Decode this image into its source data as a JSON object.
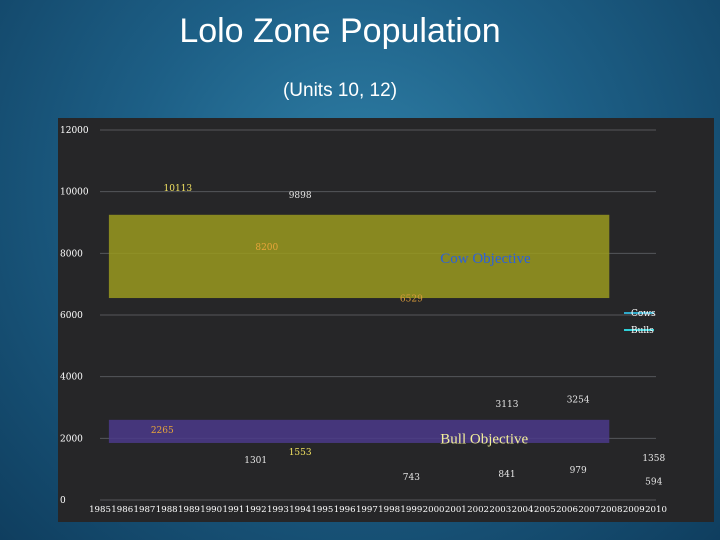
{
  "slide": {
    "title": "Lolo Zone Population",
    "subtitle": "(Units 10, 12)"
  },
  "chart_data": {
    "type": "line",
    "title": "Lolo Zone Population",
    "subtitle": "(Units 10, 12)",
    "xlabel": "",
    "ylabel": "",
    "ylim": [
      0,
      12000
    ],
    "yticks": [
      0,
      2000,
      4000,
      6000,
      8000,
      10000,
      12000
    ],
    "ytick_labels": [
      "0",
      "2000",
      "4000",
      "6000",
      "8000",
      "10000",
      "12000"
    ],
    "grid": true,
    "x": [
      1985,
      1986,
      1987,
      1988,
      1989,
      1990,
      1991,
      1992,
      1993,
      1994,
      1995,
      1996,
      1997,
      1998,
      1999,
      2000,
      2001,
      2002,
      2003,
      2004,
      2005,
      2006,
      2007,
      2008,
      2009,
      2010
    ],
    "series": [
      {
        "name": "Cows",
        "color": "#2fa8c8"
      },
      {
        "name": "Bulls",
        "color": "#2fd0d8"
      }
    ],
    "data_labels": [
      {
        "x": 1988.5,
        "y": 10113,
        "text": "10113",
        "color": "#f0e060"
      },
      {
        "x": 1994.0,
        "y": 9898,
        "text": "9898",
        "color": "#e6e6e6"
      },
      {
        "x": 1992.5,
        "y": 8200,
        "text": "8200",
        "color": "#e8a53a"
      },
      {
        "x": 1999.0,
        "y": 6529,
        "text": "6529",
        "color": "#d89a3a"
      },
      {
        "x": 1987.8,
        "y": 2265,
        "text": "2265",
        "color": "#e8a53a"
      },
      {
        "x": 1992.0,
        "y": 1301,
        "text": "1301",
        "color": "#e6e6e6"
      },
      {
        "x": 1994.0,
        "y": 1553,
        "text": "1553",
        "color": "#f0e060"
      },
      {
        "x": 1999.0,
        "y": 743,
        "text": "743",
        "color": "#e6e6e6"
      },
      {
        "x": 2003.3,
        "y": 3113,
        "text": "3113",
        "color": "#e6e6e6"
      },
      {
        "x": 2003.3,
        "y": 841,
        "text": "841",
        "color": "#e6e6e6"
      },
      {
        "x": 2006.5,
        "y": 3254,
        "text": "3254",
        "color": "#e6e6e6"
      },
      {
        "x": 2006.5,
        "y": 979,
        "text": "979",
        "color": "#e6e6e6"
      },
      {
        "x": 2009.9,
        "y": 1358,
        "text": "1358",
        "color": "#e6e6e6"
      },
      {
        "x": 2009.9,
        "y": 594,
        "text": "594",
        "color": "#e6e6e6"
      }
    ],
    "bands": [
      {
        "name": "Cow Objective",
        "label": "Cow Objective",
        "x_range": [
          1985.4,
          2007.9
        ],
        "y_range": [
          6550,
          9250
        ],
        "color": "#9a9a1e",
        "label_color": "#2a5fe0"
      },
      {
        "name": "Bull Objective",
        "label": "Bull Objective",
        "x_range": [
          1985.4,
          2007.9
        ],
        "y_range": [
          1850,
          2600
        ],
        "color": "#4b3a8a",
        "label_color": "#f2ef9a"
      }
    ],
    "legend_position": "right"
  }
}
